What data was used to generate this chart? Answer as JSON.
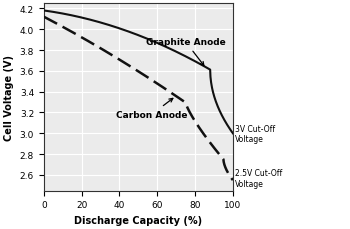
{
  "title": "",
  "xlabel": "Discharge Capacity (%)",
  "ylabel": "Cell Voltage (V)",
  "xlim": [
    0,
    100
  ],
  "ylim": [
    2.45,
    4.25
  ],
  "yticks": [
    2.6,
    2.8,
    3.0,
    3.2,
    3.4,
    3.6,
    3.8,
    4.0,
    4.2
  ],
  "xticks": [
    0,
    20,
    40,
    60,
    80,
    100
  ],
  "graphite_label": "Graphite Anode",
  "carbon_label": "Carbon Anode",
  "cutoff_3v_label": "3V Cut-Off\nVoltage",
  "cutoff_25v_label": "2.5V Cut-Off\nVoltage",
  "line_color": "#111111",
  "background_color": "#ebebeb",
  "grid_color": "#ffffff"
}
